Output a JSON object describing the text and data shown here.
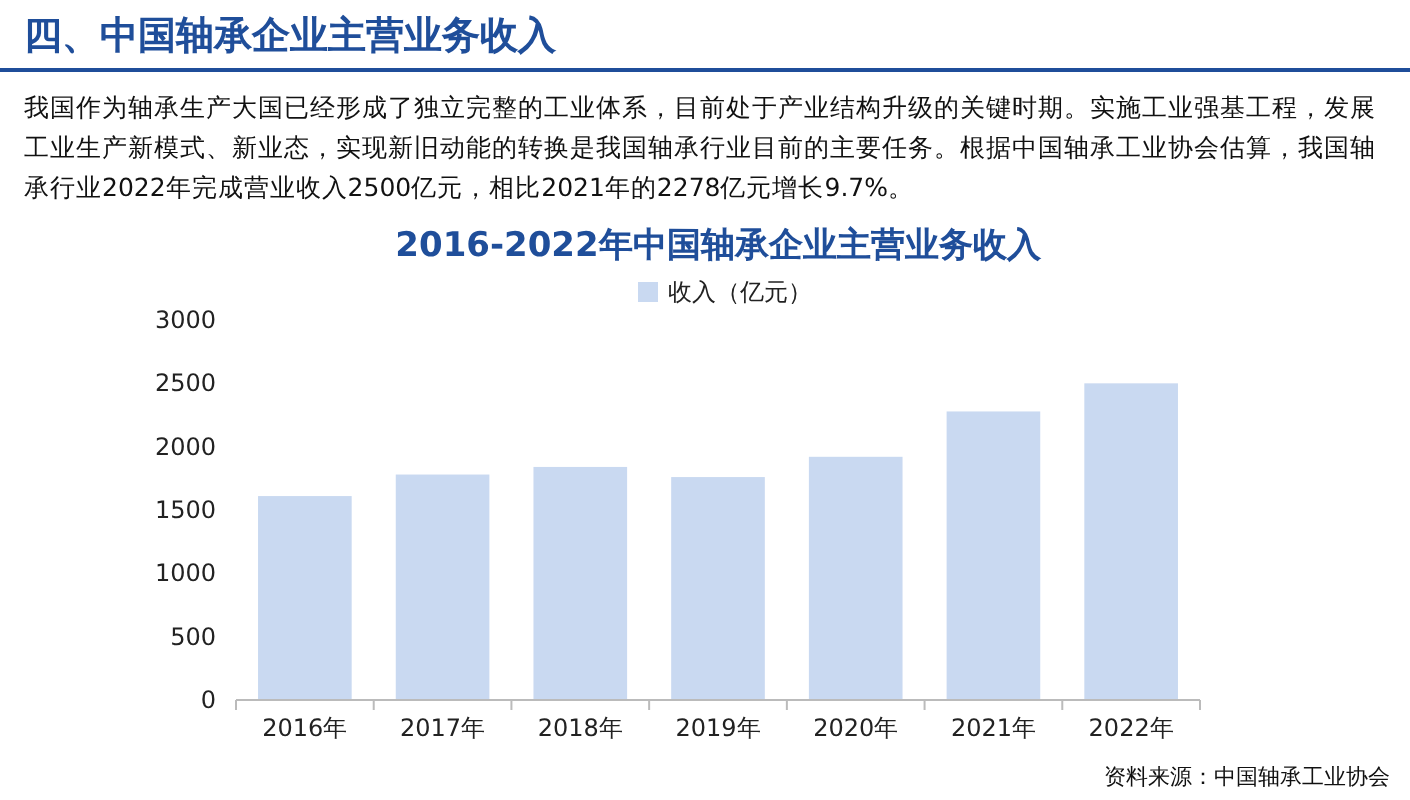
{
  "chart_data": {
    "type": "bar",
    "title": "四、中国轴承企业主营业务收入",
    "subtitle": "2016-2022年中国轴承企业主营业务收入",
    "annotations": [
      "我国作为轴承生产大国已经形成了独立完整的工业体系，目前处于产业结构升级的关键时期。实施工业强基工程，发展工业生产新模式、新业态，实现新旧动能的转换是我国轴承行业目前的主要任务。根据中国轴承工业协会估算，我国轴承行业2022年完成营业收入2500亿元，相比2021年的2278亿元增长9.7%。",
      "资料来源：中国轴承工业协会"
    ],
    "categories": [
      "2016年",
      "2017年",
      "2018年",
      "2019年",
      "2020年",
      "2021年",
      "2022年"
    ],
    "series": [
      {
        "name": "收入（亿元）",
        "color": "#c9d9f1",
        "values": [
          1610,
          1780,
          1840,
          1760,
          1920,
          2278,
          2500
        ]
      }
    ],
    "ylim": [
      0,
      3000
    ],
    "yticks": [
      0,
      500,
      1000,
      1500,
      2000,
      2500,
      3000
    ],
    "legend": "top"
  }
}
